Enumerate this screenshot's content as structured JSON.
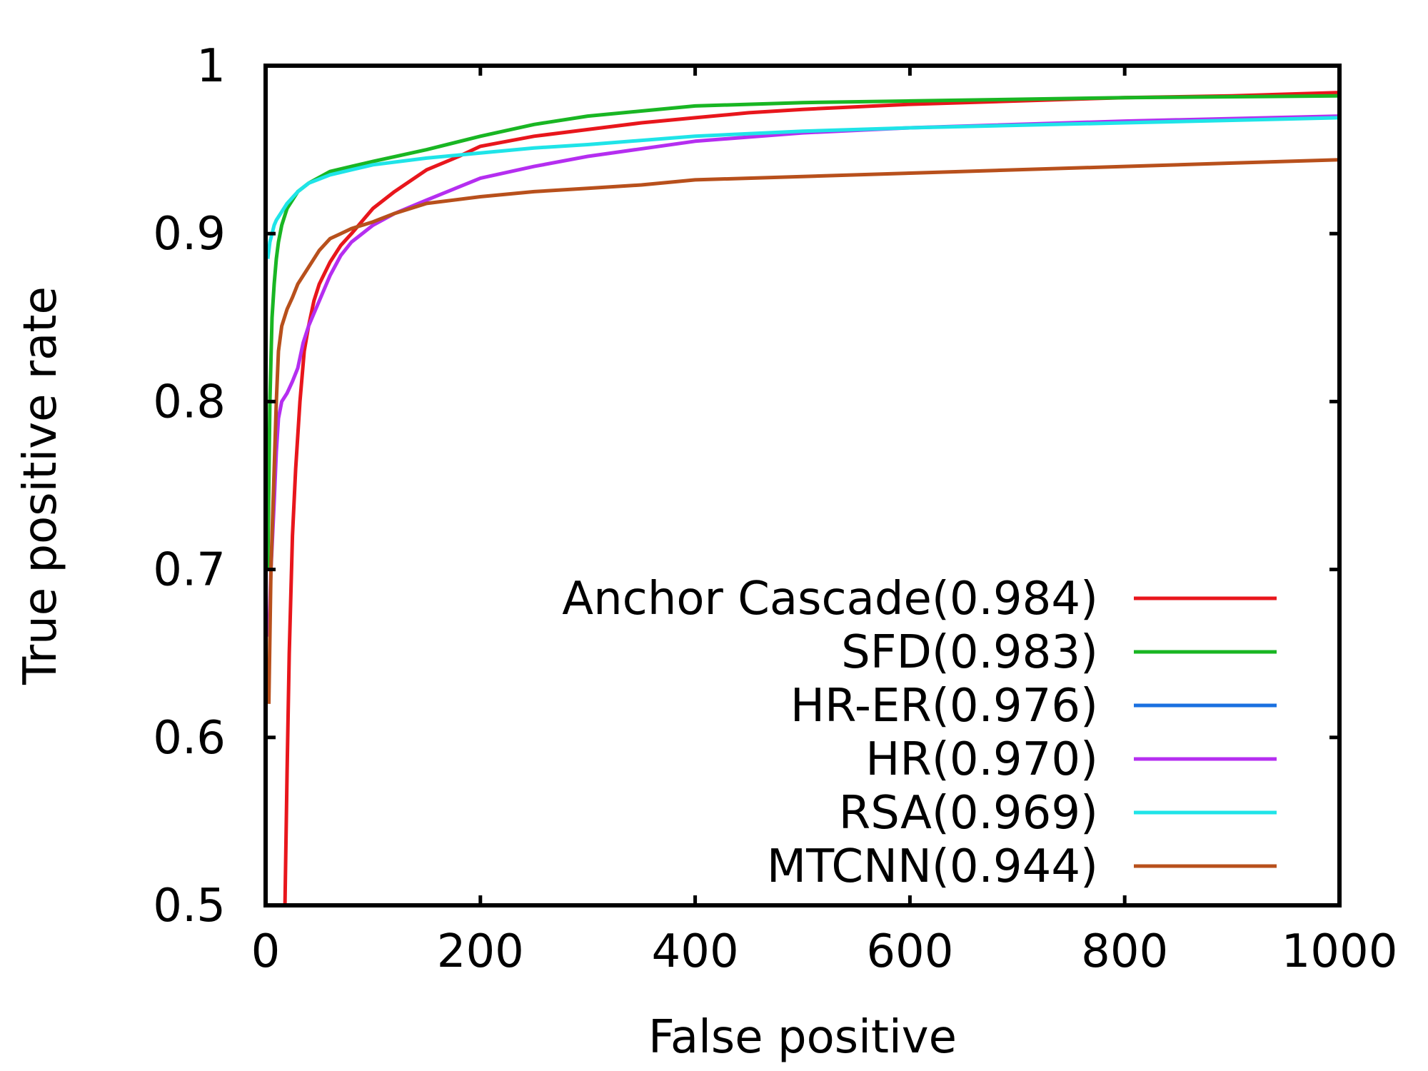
{
  "chart_data": {
    "type": "line",
    "xlabel": "False positive",
    "ylabel": "True positive rate",
    "xlim": [
      0,
      1000
    ],
    "ylim": [
      0.5,
      1
    ],
    "x_ticks": [
      0,
      200,
      400,
      600,
      800,
      1000
    ],
    "x_tick_labels": [
      "0",
      "200",
      "400",
      "600",
      "800",
      "1000"
    ],
    "y_ticks": [
      0.5,
      0.6,
      0.7,
      0.8,
      0.9,
      1
    ],
    "y_tick_labels": [
      "0.5",
      "0.6",
      "0.7",
      "0.8",
      "0.9",
      "1"
    ],
    "grid": false,
    "legend_position": "bottom-right",
    "series": [
      {
        "name": "Anchor Cascade(0.984)",
        "color": "#e8161c",
        "x": [
          18,
          20,
          22,
          25,
          28,
          32,
          36,
          40,
          45,
          50,
          60,
          70,
          80,
          100,
          120,
          150,
          180,
          200,
          250,
          300,
          350,
          400,
          450,
          500,
          600,
          700,
          800,
          900,
          1000
        ],
        "y": [
          0.5,
          0.58,
          0.65,
          0.72,
          0.76,
          0.8,
          0.83,
          0.845,
          0.86,
          0.87,
          0.883,
          0.893,
          0.9,
          0.915,
          0.925,
          0.938,
          0.946,
          0.952,
          0.958,
          0.962,
          0.966,
          0.969,
          0.972,
          0.974,
          0.977,
          0.979,
          0.981,
          0.982,
          0.984
        ]
      },
      {
        "name": "SFD(0.983)",
        "color": "#19b623",
        "x": [
          2,
          4,
          6,
          8,
          10,
          12,
          15,
          20,
          30,
          40,
          60,
          80,
          100,
          150,
          200,
          250,
          300,
          400,
          500,
          600,
          800,
          1000
        ],
        "y": [
          0.7,
          0.8,
          0.85,
          0.87,
          0.885,
          0.895,
          0.905,
          0.915,
          0.925,
          0.93,
          0.937,
          0.94,
          0.943,
          0.95,
          0.958,
          0.965,
          0.97,
          0.976,
          0.978,
          0.979,
          0.981,
          0.982
        ]
      },
      {
        "name": "HR-ER(0.976)",
        "color": "#1a70e0",
        "x": [],
        "y": []
      },
      {
        "name": "HR(0.970)",
        "color": "#b52ef0",
        "x": [
          3,
          5,
          8,
          10,
          12,
          15,
          20,
          25,
          30,
          35,
          40,
          50,
          60,
          70,
          80,
          100,
          120,
          150,
          200,
          250,
          300,
          400,
          500,
          600,
          800,
          1000
        ],
        "y": [
          0.66,
          0.7,
          0.74,
          0.77,
          0.79,
          0.8,
          0.805,
          0.812,
          0.82,
          0.835,
          0.845,
          0.86,
          0.875,
          0.887,
          0.895,
          0.905,
          0.912,
          0.92,
          0.933,
          0.94,
          0.946,
          0.955,
          0.96,
          0.963,
          0.967,
          0.97
        ]
      },
      {
        "name": "RSA(0.969)",
        "color": "#1fe4e8",
        "x": [
          2,
          4,
          6,
          8,
          10,
          15,
          20,
          30,
          40,
          60,
          80,
          100,
          150,
          200,
          250,
          300,
          400,
          500,
          600,
          800,
          1000
        ],
        "y": [
          0.885,
          0.895,
          0.9,
          0.905,
          0.908,
          0.913,
          0.918,
          0.925,
          0.93,
          0.935,
          0.938,
          0.941,
          0.945,
          0.948,
          0.951,
          0.953,
          0.958,
          0.961,
          0.963,
          0.966,
          0.969
        ]
      },
      {
        "name": "MTCNN(0.944)",
        "color": "#b8501c",
        "x": [
          3,
          5,
          8,
          10,
          12,
          15,
          20,
          25,
          30,
          40,
          50,
          60,
          70,
          80,
          100,
          120,
          150,
          200,
          250,
          300,
          350,
          400,
          500,
          600,
          700,
          800,
          900,
          1000
        ],
        "y": [
          0.62,
          0.7,
          0.76,
          0.8,
          0.83,
          0.845,
          0.855,
          0.862,
          0.87,
          0.88,
          0.89,
          0.897,
          0.9,
          0.903,
          0.907,
          0.912,
          0.918,
          0.922,
          0.925,
          0.927,
          0.929,
          0.932,
          0.934,
          0.936,
          0.938,
          0.94,
          0.942,
          0.944
        ]
      }
    ]
  }
}
